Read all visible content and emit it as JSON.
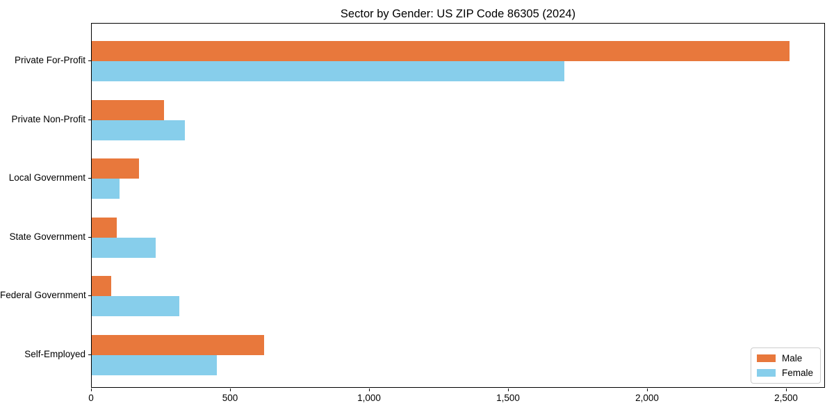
{
  "chart_data": {
    "type": "bar",
    "orientation": "horizontal",
    "title": "Sector by Gender: US ZIP Code 86305 (2024)",
    "categories": [
      "Private For-Profit",
      "Private Non-Profit",
      "Local Government",
      "State Government",
      "Federal Government",
      "Self-Employed"
    ],
    "series": [
      {
        "name": "Male",
        "color": "#e8783c",
        "values": [
          2510,
          260,
          170,
          90,
          70,
          620
        ]
      },
      {
        "name": "Female",
        "color": "#87ceeb",
        "values": [
          1700,
          335,
          100,
          230,
          315,
          450
        ]
      }
    ],
    "xlabel": "",
    "ylabel": "",
    "xlim": [
      0,
      2640
    ],
    "xticks": [
      0,
      500,
      1000,
      1500,
      2000,
      2500
    ],
    "xtick_labels": [
      "0",
      "500",
      "1,000",
      "1,500",
      "2,000",
      "2,500"
    ],
    "legend_position": "lower right",
    "grid": false,
    "axis_color": "#000000",
    "background_color": "#ffffff"
  }
}
